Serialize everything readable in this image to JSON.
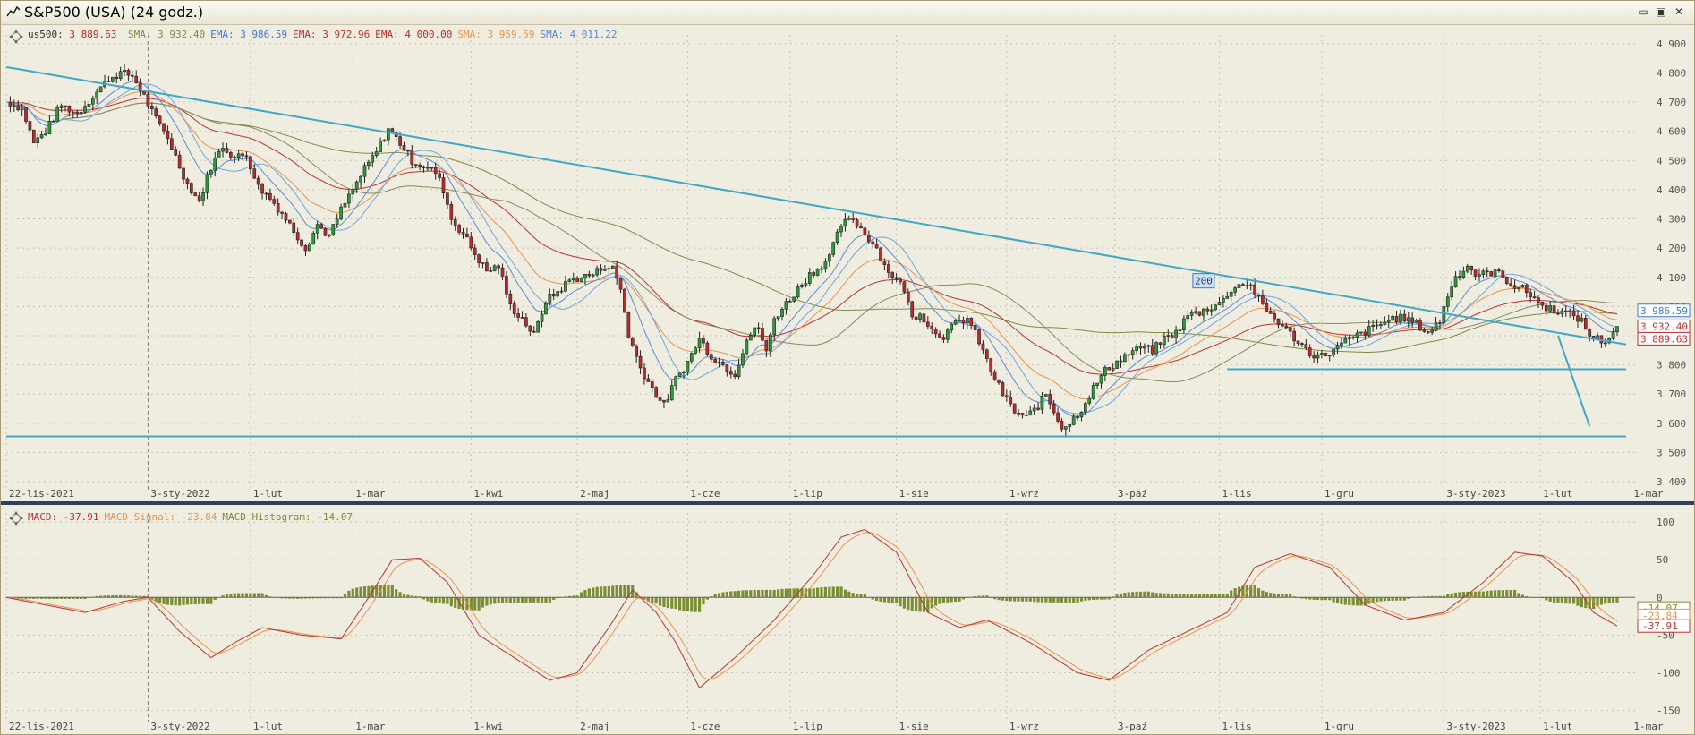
{
  "window": {
    "title": "S&P500 (USA) (24 godz.)",
    "buttons": {
      "minimize": "▭",
      "restore": "▣",
      "close": "✕"
    }
  },
  "colors": {
    "background": "#efece0",
    "grid": "#c9c4b3",
    "up_candle": "#2f9a3c",
    "down_candle": "#c0282c",
    "trendline": "#3fa8c8",
    "sma_green": "#7a8e44",
    "ema_blue": "#5a8ad6",
    "ema_red": "#b83434",
    "sma_orange": "#e8944a",
    "sma_lightblue": "#6ea6e0",
    "macd_line": "#b83434",
    "macd_signal": "#e8944a",
    "macd_hist": "#7a8e34"
  },
  "legend": {
    "price": {
      "label": "us500:",
      "value": "3 889.63"
    },
    "items": [
      {
        "label": "SMA:",
        "value": "3 932.40",
        "color": "#7a8e44"
      },
      {
        "label": "EMA:",
        "value": "3 986.59",
        "color": "#3a7ad6"
      },
      {
        "label": "EMA:",
        "value": "3 972.96",
        "color": "#b83434"
      },
      {
        "label": "EMA:",
        "value": "4 000.00",
        "color": "#c0282c"
      },
      {
        "label": "SMA:",
        "value": "3 959.59",
        "color": "#e8944a"
      },
      {
        "label": "SMA:",
        "value": "4 011.22",
        "color": "#5a8ad6"
      }
    ]
  },
  "macd_legend": [
    {
      "label": "MACD:",
      "value": "-37.91",
      "color": "#b83434"
    },
    {
      "label": "MACD Signal:",
      "value": "-23.84",
      "color": "#e8944a"
    },
    {
      "label": "MACD Histogram:",
      "value": "-14.07",
      "color": "#7a8e34"
    }
  ],
  "chart_data": [
    {
      "type": "candlestick",
      "title": "S&P500 (USA) (24 godz.)",
      "y_ticks": [
        "4 900",
        "4 800",
        "4 700",
        "4 600",
        "4 500",
        "4 400",
        "4 300",
        "4 200",
        "4 100",
        "4 000",
        "3 900",
        "3 800",
        "3 700",
        "3 600",
        "3 500",
        "3 400"
      ],
      "y_tick_values": [
        4900,
        4800,
        4700,
        4600,
        4500,
        4400,
        4300,
        4200,
        4100,
        4000,
        3900,
        3800,
        3700,
        3600,
        3500,
        3400
      ],
      "ylim": [
        3385,
        4930
      ],
      "x_ticks": [
        "22-lis-2021",
        "3-sty-2022",
        "1-lut",
        "1-mar",
        "1-kwi",
        "2-maj",
        "1-cze",
        "1-lip",
        "1-sie",
        "1-wrz",
        "3-paź",
        "1-lis",
        "1-gru",
        "3-sty-2023",
        "1-lut",
        "1-mar"
      ],
      "close_path": [
        [
          0,
          4700
        ],
        [
          8,
          4680
        ],
        [
          14,
          4560
        ],
        [
          20,
          4600
        ],
        [
          28,
          4690
        ],
        [
          36,
          4660
        ],
        [
          44,
          4720
        ],
        [
          52,
          4780
        ],
        [
          58,
          4800
        ],
        [
          64,
          4790
        ],
        [
          70,
          4720
        ],
        [
          76,
          4640
        ],
        [
          82,
          4580
        ],
        [
          88,
          4480
        ],
        [
          92,
          4420
        ],
        [
          98,
          4360
        ],
        [
          104,
          4480
        ],
        [
          110,
          4550
        ],
        [
          116,
          4510
        ],
        [
          122,
          4520
        ],
        [
          128,
          4410
        ],
        [
          134,
          4370
        ],
        [
          140,
          4320
        ],
        [
          146,
          4260
        ],
        [
          152,
          4200
        ],
        [
          158,
          4280
        ],
        [
          164,
          4240
        ],
        [
          170,
          4330
        ],
        [
          176,
          4400
        ],
        [
          182,
          4470
        ],
        [
          188,
          4530
        ],
        [
          194,
          4610
        ],
        [
          200,
          4560
        ],
        [
          206,
          4500
        ],
        [
          212,
          4480
        ],
        [
          218,
          4460
        ],
        [
          222,
          4400
        ],
        [
          226,
          4300
        ],
        [
          232,
          4250
        ],
        [
          238,
          4180
        ],
        [
          244,
          4120
        ],
        [
          250,
          4140
        ],
        [
          256,
          4000
        ],
        [
          262,
          3960
        ],
        [
          268,
          3900
        ],
        [
          274,
          4020
        ],
        [
          280,
          4050
        ],
        [
          286,
          4090
        ],
        [
          292,
          4100
        ],
        [
          298,
          4110
        ],
        [
          304,
          4140
        ],
        [
          308,
          4130
        ],
        [
          312,
          4060
        ],
        [
          316,
          3900
        ],
        [
          322,
          3790
        ],
        [
          328,
          3720
        ],
        [
          334,
          3660
        ],
        [
          340,
          3750
        ],
        [
          346,
          3810
        ],
        [
          352,
          3890
        ],
        [
          358,
          3830
        ],
        [
          364,
          3800
        ],
        [
          370,
          3770
        ],
        [
          376,
          3890
        ],
        [
          382,
          3930
        ],
        [
          386,
          3840
        ],
        [
          390,
          3960
        ],
        [
          396,
          4010
        ],
        [
          402,
          4060
        ],
        [
          408,
          4110
        ],
        [
          412,
          4130
        ],
        [
          418,
          4170
        ],
        [
          424,
          4280
        ],
        [
          430,
          4300
        ],
        [
          436,
          4250
        ],
        [
          442,
          4200
        ],
        [
          446,
          4140
        ],
        [
          452,
          4090
        ],
        [
          456,
          4060
        ],
        [
          460,
          3960
        ],
        [
          464,
          3980
        ],
        [
          470,
          3920
        ],
        [
          476,
          3900
        ],
        [
          482,
          3940
        ],
        [
          488,
          3960
        ],
        [
          494,
          3880
        ],
        [
          500,
          3780
        ],
        [
          506,
          3700
        ],
        [
          512,
          3640
        ],
        [
          518,
          3620
        ],
        [
          524,
          3660
        ],
        [
          528,
          3700
        ],
        [
          532,
          3640
        ],
        [
          536,
          3590
        ],
        [
          540,
          3600
        ],
        [
          546,
          3650
        ],
        [
          552,
          3720
        ],
        [
          558,
          3780
        ],
        [
          564,
          3810
        ],
        [
          570,
          3840
        ],
        [
          576,
          3860
        ],
        [
          582,
          3850
        ],
        [
          588,
          3890
        ],
        [
          594,
          3910
        ],
        [
          600,
          3970
        ],
        [
          606,
          3980
        ],
        [
          612,
          4000
        ],
        [
          618,
          4020
        ],
        [
          622,
          4060
        ],
        [
          628,
          4080
        ],
        [
          632,
          4070
        ],
        [
          638,
          4000
        ],
        [
          644,
          3960
        ],
        [
          650,
          3920
        ],
        [
          656,
          3880
        ],
        [
          662,
          3840
        ],
        [
          668,
          3830
        ],
        [
          674,
          3850
        ],
        [
          680,
          3880
        ],
        [
          686,
          3900
        ],
        [
          692,
          3920
        ],
        [
          698,
          3940
        ],
        [
          704,
          3960
        ],
        [
          710,
          3960
        ],
        [
          716,
          3940
        ],
        [
          722,
          3910
        ],
        [
          728,
          3950
        ],
        [
          732,
          4040
        ],
        [
          736,
          4100
        ],
        [
          742,
          4140
        ],
        [
          746,
          4110
        ],
        [
          750,
          4110
        ],
        [
          756,
          4120
        ],
        [
          760,
          4100
        ],
        [
          766,
          4070
        ],
        [
          770,
          4060
        ],
        [
          776,
          4030
        ],
        [
          780,
          4000
        ],
        [
          786,
          3990
        ],
        [
          790,
          3980
        ],
        [
          796,
          3970
        ],
        [
          800,
          3950
        ],
        [
          804,
          3900
        ],
        [
          808,
          3890
        ],
        [
          812,
          3880
        ],
        [
          818,
          3930
        ]
      ],
      "trendline_down": [
        [
          0,
          4820
        ],
        [
          818,
          3870
        ]
      ],
      "trendline_target": [
        [
          788,
          3900
        ],
        [
          804,
          3590
        ]
      ],
      "support_1": [
        [
          0,
          3555
        ],
        [
          818,
          3555
        ]
      ],
      "support_2": [
        [
          620,
          3785
        ],
        [
          818,
          3785
        ]
      ],
      "label_200": "200",
      "last_values": [
        {
          "value": "3 986.59",
          "y": 3986.59,
          "color": "#3a7ad6"
        },
        {
          "value": "3 932.40",
          "y": 3932.4,
          "color": "#b83434"
        },
        {
          "value": "3 889.63",
          "y": 3889.63,
          "color": "#c0282c"
        }
      ]
    },
    {
      "type": "macd",
      "y_ticks": [
        "100",
        "50",
        "0",
        "-50",
        "-100",
        "-150"
      ],
      "y_tick_values": [
        100,
        50,
        0,
        -50,
        -100,
        -150
      ],
      "ylim": [
        -160,
        112
      ],
      "x_ticks": [
        "22-lis-2021",
        "3-sty-2022",
        "1-lut",
        "1-mar",
        "1-kwi",
        "2-maj",
        "1-cze",
        "1-lip",
        "1-sie",
        "1-wrz",
        "3-paź",
        "1-lis",
        "1-gru",
        "3-sty-2023",
        "1-lut",
        "1-mar"
      ],
      "last_values": [
        {
          "value": "-14.07",
          "y": -14.07,
          "color": "#7a8e34"
        },
        {
          "value": "-23.84",
          "y": -23.84,
          "color": "#e8944a"
        },
        {
          "value": "-37.91",
          "y": -37.91,
          "color": "#b83434"
        }
      ]
    }
  ]
}
